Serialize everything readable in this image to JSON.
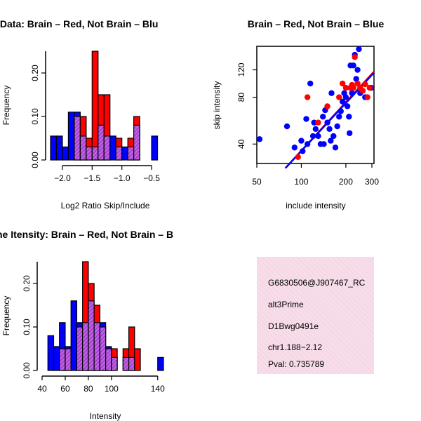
{
  "colors": {
    "brain": "#ff0000",
    "not_brain": "#0000ff",
    "overlap": "#a020f0",
    "info_bg": "#f7dde9",
    "pval": "#990000"
  },
  "chart_data": [
    {
      "id": "ratio",
      "type": "bar",
      "title": "RatioData: Brain - Red, Not Brain - Blue",
      "title_visible": "atioData: Brain – Red, Not Brain – Blu",
      "xlabel": "Log2 Ratio Skip/Include",
      "ylabel": "Frequency",
      "xlim": [
        -2.2,
        -0.3
      ],
      "ylim": [
        0,
        0.25
      ],
      "xticks": [
        -2.0,
        -1.5,
        -1.0,
        -0.5
      ],
      "xtick_labels": [
        "−2.0",
        "−1.5",
        "−1.0",
        "−0.5"
      ],
      "yticks": [
        0.0,
        0.1,
        0.2
      ],
      "ytick_labels": [
        "0.00",
        "0.10",
        "0.20"
      ],
      "bin_width": 0.1,
      "series": [
        {
          "name": "Not Brain",
          "color": "blue",
          "bins": [
            [
              -2.2,
              0.055
            ],
            [
              -2.1,
              0.055
            ],
            [
              -2.0,
              0.03
            ],
            [
              -1.9,
              0.11
            ],
            [
              -1.8,
              0.11
            ],
            [
              -1.7,
              0.055
            ],
            [
              -1.6,
              0.03
            ],
            [
              -1.5,
              0.03
            ],
            [
              -1.4,
              0.08
            ],
            [
              -1.3,
              0.055
            ],
            [
              -1.2,
              0.055
            ],
            [
              -1.1,
              0.03
            ],
            [
              -1.0,
              0.03
            ],
            [
              -0.9,
              0.03
            ],
            [
              -0.8,
              0.08
            ],
            [
              -0.5,
              0.055
            ]
          ]
        },
        {
          "name": "Brain",
          "color": "red",
          "bins": [
            [
              -1.8,
              0.1
            ],
            [
              -1.7,
              0.1
            ],
            [
              -1.6,
              0.05
            ],
            [
              -1.5,
              0.25
            ],
            [
              -1.4,
              0.15
            ],
            [
              -1.3,
              0.15
            ],
            [
              -1.1,
              0.05
            ],
            [
              -0.9,
              0.05
            ],
            [
              -0.8,
              0.1
            ]
          ]
        }
      ]
    },
    {
      "id": "scatter",
      "type": "scatter",
      "title": "Brain – Red, Not Brain – Blue",
      "xlabel": "include intensity",
      "ylabel": "skip intensity",
      "log_axes": true,
      "xlim": [
        50,
        310
      ],
      "ylim": [
        30,
        170
      ],
      "xticks": [
        50,
        100,
        200,
        300
      ],
      "yticks": [
        40,
        80,
        120
      ],
      "series": [
        {
          "name": "Not Brain",
          "color": "blue",
          "points": [
            [
              52,
              43
            ],
            [
              80,
              52
            ],
            [
              90,
              38
            ],
            [
              100,
              42
            ],
            [
              102,
              36
            ],
            [
              108,
              58
            ],
            [
              110,
              40
            ],
            [
              115,
              98
            ],
            [
              120,
              45
            ],
            [
              122,
              55
            ],
            [
              125,
              50
            ],
            [
              130,
              45
            ],
            [
              135,
              40
            ],
            [
              140,
              60
            ],
            [
              142,
              40
            ],
            [
              145,
              66
            ],
            [
              150,
              55
            ],
            [
              155,
              50
            ],
            [
              158,
              42
            ],
            [
              160,
              85
            ],
            [
              165,
              45
            ],
            [
              170,
              38
            ],
            [
              175,
              52
            ],
            [
              180,
              60
            ],
            [
              185,
              65
            ],
            [
              190,
              75
            ],
            [
              195,
              85
            ],
            [
              200,
              80
            ],
            [
              205,
              70
            ],
            [
              210,
              60
            ],
            [
              212,
              47
            ],
            [
              215,
              128
            ],
            [
              220,
              85
            ],
            [
              225,
              128
            ],
            [
              230,
              150
            ],
            [
              235,
              105
            ],
            [
              240,
              120
            ],
            [
              245,
              175
            ],
            [
              250,
              85
            ],
            [
              270,
              80
            ],
            [
              300,
              92
            ]
          ]
        },
        {
          "name": "Brain",
          "color": "red",
          "points": [
            [
              95,
              33
            ],
            [
              110,
              80
            ],
            [
              130,
              55
            ],
            [
              150,
              70
            ],
            [
              180,
              80
            ],
            [
              190,
              98
            ],
            [
              200,
              92
            ],
            [
              215,
              92
            ],
            [
              220,
              96
            ],
            [
              225,
              92
            ],
            [
              230,
              145
            ],
            [
              240,
              98
            ],
            [
              250,
              92
            ],
            [
              260,
              88
            ],
            [
              270,
              97
            ],
            [
              280,
              80
            ],
            [
              290,
              92
            ]
          ]
        }
      ],
      "fits": [
        {
          "color": "red",
          "from": [
            78,
            28
          ],
          "to": [
            310,
            117
          ]
        },
        {
          "color": "blue",
          "from": [
            78,
            28
          ],
          "to": [
            310,
            115
          ]
        }
      ]
    },
    {
      "id": "intensity",
      "type": "bar",
      "title": "Gene Itensity: Brain - Red, Not Brain - Blue",
      "title_visible": "ne Itensity: Brain – Red, Not Brain – B",
      "xlabel": "Intensity",
      "ylabel": "Frequency",
      "xlim": [
        40,
        145
      ],
      "ylim": [
        0,
        0.25
      ],
      "xticks": [
        40,
        60,
        80,
        100,
        140
      ],
      "xtick_labels": [
        "40",
        "60",
        "80",
        "100",
        "140"
      ],
      "yticks": [
        0.0,
        0.1,
        0.2
      ],
      "ytick_labels": [
        "0.00",
        "0.10",
        "0.20"
      ],
      "bin_width": 5,
      "series": [
        {
          "name": "Not Brain",
          "color": "blue",
          "bins": [
            [
              45,
              0.08
            ],
            [
              50,
              0.055
            ],
            [
              55,
              0.11
            ],
            [
              60,
              0.055
            ],
            [
              65,
              0.16
            ],
            [
              70,
              0.11
            ],
            [
              75,
              0.11
            ],
            [
              80,
              0.16
            ],
            [
              85,
              0.11
            ],
            [
              90,
              0.11
            ],
            [
              95,
              0.055
            ],
            [
              100,
              0.03
            ],
            [
              110,
              0.03
            ],
            [
              115,
              0.03
            ],
            [
              140,
              0.03
            ]
          ]
        },
        {
          "name": "Brain",
          "color": "red",
          "bins": [
            [
              55,
              0.05
            ],
            [
              60,
              0.05
            ],
            [
              70,
              0.1
            ],
            [
              75,
              0.25
            ],
            [
              80,
              0.2
            ],
            [
              85,
              0.15
            ],
            [
              90,
              0.1
            ],
            [
              95,
              0.05
            ],
            [
              100,
              0.05
            ],
            [
              110,
              0.05
            ],
            [
              115,
              0.1
            ],
            [
              120,
              0.05
            ]
          ]
        }
      ]
    }
  ],
  "info": {
    "probe_id": "G6830506@J907467_RC",
    "event_type": "alt3Prime",
    "gene": "D1Bwg0491e",
    "location": "chr1.188−2.12",
    "pval": "Pval: 0.735789"
  }
}
